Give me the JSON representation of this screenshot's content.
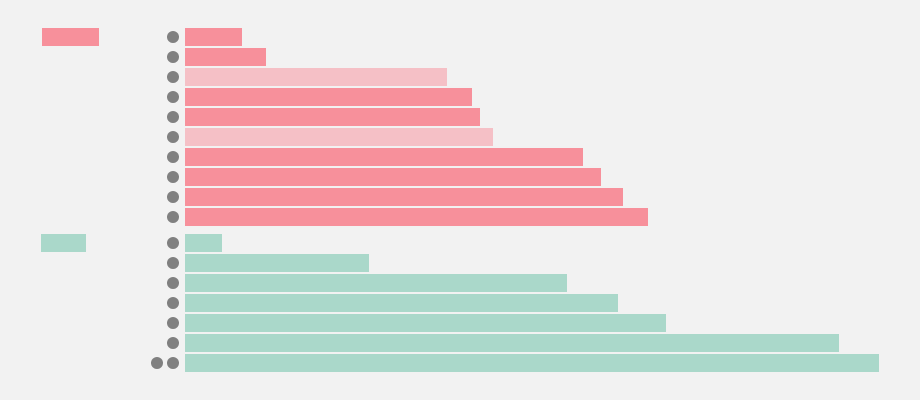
{
  "chart_data": [
    {
      "type": "bar",
      "color": "#f7909b",
      "colors": [
        "#f7909b",
        "#f7909b",
        "#f5c0c6",
        "#f7909b",
        "#f7909b",
        "#f5c0c6",
        "#f7909b",
        "#f7909b",
        "#f7909b",
        "#f7909b"
      ],
      "values": [
        57,
        81,
        262,
        287,
        295,
        308,
        398,
        416,
        438,
        463
      ],
      "xlim": [
        0,
        700
      ]
    },
    {
      "type": "bar",
      "color": "#aad8ca",
      "colors": [
        "#aad8ca",
        "#aad8ca",
        "#aad8ca",
        "#aad8ca",
        "#aad8ca",
        "#aad8ca",
        "#aad8ca"
      ],
      "values": [
        37,
        184,
        382,
        433,
        481,
        654,
        694
      ],
      "xlim": [
        0,
        700
      ]
    }
  ]
}
